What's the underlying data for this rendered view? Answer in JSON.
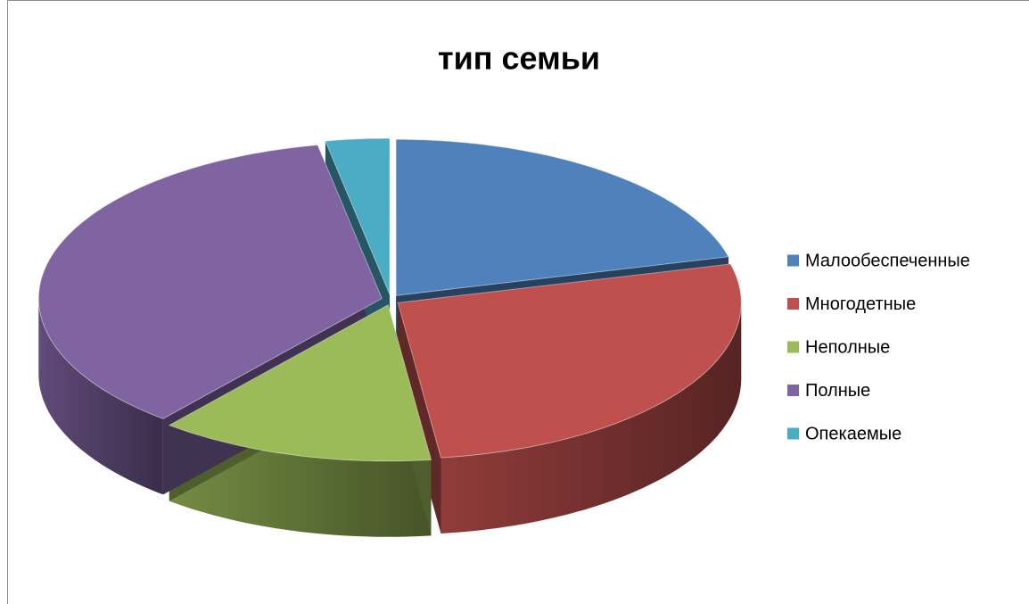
{
  "chart_data": {
    "type": "pie",
    "title": "тип семьи",
    "categories": [
      "Малообеспеченные",
      "Многодетные",
      "Неполные",
      "Полные",
      "Опекаемые"
    ],
    "values": [
      21,
      27,
      13,
      36,
      3
    ],
    "colors": [
      "#4f81bd",
      "#c0504d",
      "#9bbb59",
      "#8064a2",
      "#4bacc6"
    ],
    "legend": "right",
    "3d": true
  }
}
